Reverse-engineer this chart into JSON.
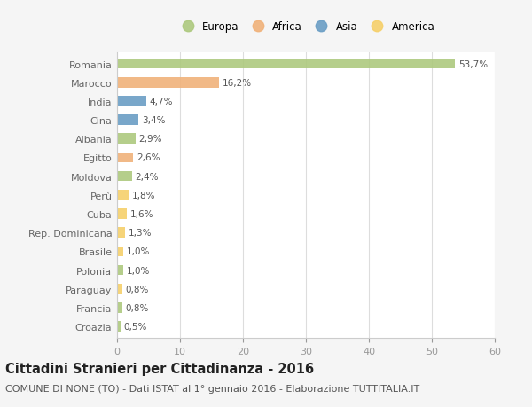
{
  "categories": [
    "Romania",
    "Marocco",
    "India",
    "Cina",
    "Albania",
    "Egitto",
    "Moldova",
    "Perù",
    "Cuba",
    "Rep. Dominicana",
    "Brasile",
    "Polonia",
    "Paraguay",
    "Francia",
    "Croazia"
  ],
  "values": [
    53.7,
    16.2,
    4.7,
    3.4,
    2.9,
    2.6,
    2.4,
    1.8,
    1.6,
    1.3,
    1.0,
    1.0,
    0.8,
    0.8,
    0.5
  ],
  "labels": [
    "53,7%",
    "16,2%",
    "4,7%",
    "3,4%",
    "2,9%",
    "2,6%",
    "2,4%",
    "1,8%",
    "1,6%",
    "1,3%",
    "1,0%",
    "1,0%",
    "0,8%",
    "0,8%",
    "0,5%"
  ],
  "continents": [
    "Europa",
    "Africa",
    "Asia",
    "Asia",
    "Europa",
    "Africa",
    "Europa",
    "America",
    "America",
    "America",
    "America",
    "Europa",
    "America",
    "Europa",
    "Europa"
  ],
  "continent_colors": {
    "Europa": "#adc97e",
    "Africa": "#f0b27a",
    "Asia": "#6a9ec5",
    "America": "#f5d06a"
  },
  "legend_order": [
    "Europa",
    "Africa",
    "Asia",
    "America"
  ],
  "legend_colors": [
    "#adc97e",
    "#f0b27a",
    "#6a9ec5",
    "#f5d06a"
  ],
  "title": "Cittadini Stranieri per Cittadinanza - 2016",
  "subtitle": "COMUNE DI NONE (TO) - Dati ISTAT al 1° gennaio 2016 - Elaborazione TUTTITALIA.IT",
  "xlim": [
    0,
    60
  ],
  "xticks": [
    0,
    10,
    20,
    30,
    40,
    50,
    60
  ],
  "background_color": "#f5f5f5",
  "plot_bg_color": "#ffffff",
  "grid_color": "#dddddd",
  "bar_height": 0.55,
  "title_fontsize": 10.5,
  "subtitle_fontsize": 8,
  "label_fontsize": 7.5,
  "tick_fontsize": 8,
  "legend_fontsize": 8.5
}
